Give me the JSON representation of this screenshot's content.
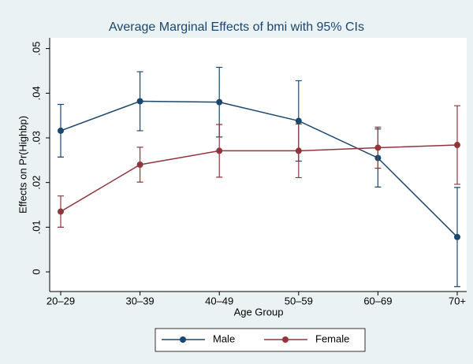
{
  "chart_data": {
    "type": "line",
    "title": "Average Marginal Effects of bmi with 95% CIs",
    "x_label": "Age Group",
    "y_label": "Effects on Pr(Highbp)",
    "categories": [
      "20–29",
      "30–39",
      "40–49",
      "50–59",
      "60–69",
      "70+"
    ],
    "series": [
      {
        "name": "Male",
        "color": "#1a476f",
        "values": [
          0.0316,
          0.0382,
          0.038,
          0.0338,
          0.0255,
          0.0078
        ],
        "errors": [
          0.0059,
          0.0066,
          0.0078,
          0.009,
          0.0065,
          0.0111
        ]
      },
      {
        "name": "Female",
        "color": "#90353b",
        "values": [
          0.0135,
          0.024,
          0.0271,
          0.0271,
          0.0278,
          0.0284
        ],
        "errors": [
          0.0035,
          0.0039,
          0.0059,
          0.006,
          0.0046,
          0.0088
        ]
      }
    ],
    "ylim": [
      -0.0044,
      0.0524
    ],
    "yticks": [
      {
        "value": 0,
        "label": "0"
      },
      {
        "value": 0.01,
        "label": ".01"
      },
      {
        "value": 0.02,
        "label": ".02"
      },
      {
        "value": 0.03,
        "label": ".03"
      },
      {
        "value": 0.04,
        "label": ".04"
      },
      {
        "value": 0.05,
        "label": ".05"
      }
    ],
    "grid": false,
    "legend": "bottom"
  }
}
